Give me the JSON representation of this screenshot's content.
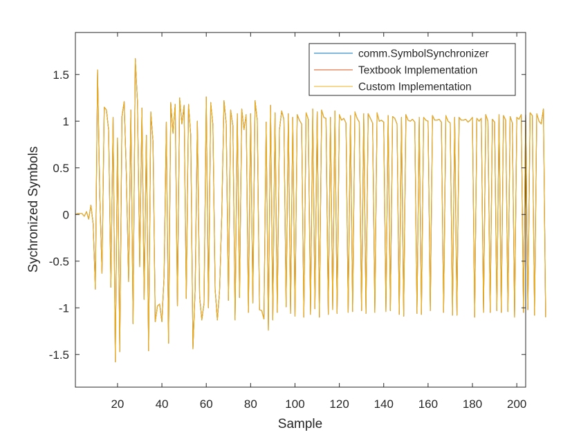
{
  "chart_data": {
    "type": "line",
    "title": "",
    "xlabel": "Sample",
    "ylabel": "Sychronized Symbols",
    "xlim": [
      1,
      204
    ],
    "ylim": [
      -1.85,
      1.95
    ],
    "xticks": [
      20,
      40,
      60,
      80,
      100,
      120,
      140,
      160,
      180,
      200
    ],
    "xtick_labels": [
      "20",
      "40",
      "60",
      "80",
      "100",
      "120",
      "140",
      "160",
      "180",
      "200"
    ],
    "yticks": [
      -1.5,
      -1,
      -0.5,
      0,
      0.5,
      1,
      1.5
    ],
    "ytick_labels": [
      "-1.5",
      "-1",
      "-0.5",
      "0",
      "0.5",
      "1",
      "1.5"
    ],
    "grid": false,
    "legend_position": "top-right",
    "x_start": 1,
    "series": [
      {
        "name": "comm.SymbolSynchronizer",
        "color": "#0072BD",
        "values": [
          0,
          0.01,
          0.01,
          0.01,
          -0.02,
          0.03,
          -0.05,
          0.1,
          -0.1,
          -0.8,
          1.55,
          0.2,
          -0.63,
          1.15,
          1.12,
          0.9,
          -0.78,
          1.04,
          -1.58,
          0.82,
          -1.47,
          1.05,
          1.21,
          0.4,
          -0.72,
          1.12,
          -1.17,
          1.67,
          1.2,
          -0.56,
          1.14,
          -0.91,
          0.85,
          -1.46,
          1.1,
          0.78,
          -1.15,
          -0.98,
          -0.96,
          -1.15,
          -0.65,
          0.99,
          -1.38,
          1.2,
          0.87,
          1.18,
          -0.98,
          1.25,
          0.97,
          1.17,
          -0.9,
          1.18,
          0.85,
          -1.44,
          -0.8,
          1.0,
          -0.88,
          -1.13,
          -0.95,
          1.26,
          -1.0,
          1.2,
          0.96,
          -0.8,
          -1.13,
          -0.82,
          0.0,
          1.22,
          0.97,
          -0.92,
          1.12,
          0.95,
          -1.13,
          1.08,
          -0.89,
          1.13,
          0.91,
          1.07,
          -1.05,
          1.08,
          -0.95,
          1.22,
          1.01,
          -1.02,
          -1.03,
          -1.12,
          0.99,
          -1.24,
          1.17,
          -1.13,
          1.09,
          -1.05,
          0.91,
          1.11,
          1.02,
          -0.99,
          1.08,
          -1.06,
          1.04,
          -1.09,
          1.07,
          1.01,
          0.97,
          -1.1,
          1.09,
          1.02,
          -1.07,
          1.13,
          -1.01,
          1.1,
          -1.1,
          1.12,
          1.04,
          1.03,
          -1.07,
          1.04,
          -1.02,
          1.11,
          -1.06,
          1.07,
          1.01,
          1.03,
          0.98,
          -1.05,
          1.06,
          -1.04,
          1.1,
          1.03,
          0.99,
          -1.03,
          1.08,
          -1.06,
          1.08,
          1.03,
          0.98,
          -1.05,
          1.09,
          1.0,
          1.01,
          0.99,
          -1.04,
          1.06,
          -1.03,
          1.05,
          1.03,
          0.97,
          -1.07,
          1.04,
          -1.09,
          1.07,
          1.01,
          1.0,
          1.02,
          0.99,
          -1.06,
          1.04,
          -1.07,
          1.04,
          1.01,
          1.0,
          -1.03,
          1.06,
          1.01,
          1.01,
          1.02,
          0.99,
          -1.05,
          1.06,
          1.0,
          0.98,
          -1.08,
          1.04,
          -1.08,
          1.04,
          1.01,
          1.01,
          1.02,
          0.99,
          1.01,
          1.04,
          -1.1,
          1.03,
          1.0,
          1.03,
          -1.05,
          1.07,
          1.0,
          -1.05,
          1.02,
          0.99,
          -1.03,
          1.07,
          -1.05,
          1.06,
          1.01,
          -1.04,
          1.05,
          0.98,
          -1.1,
          1.04,
          1.02,
          1.07,
          -1.05,
          1.07,
          -1.02,
          1.09,
          1.06,
          -1.08,
          1.08,
          1.0,
          0.97,
          1.13,
          -1.1
        ]
      },
      {
        "name": "Textbook Implementation",
        "color": "#D95319",
        "values": [
          0,
          0.01,
          0.01,
          0.01,
          -0.02,
          0.03,
          -0.05,
          0.1,
          -0.1,
          -0.8,
          1.55,
          0.2,
          -0.63,
          1.15,
          1.12,
          0.9,
          -0.78,
          1.04,
          -1.58,
          0.82,
          -1.47,
          1.05,
          1.21,
          0.4,
          -0.72,
          1.12,
          -1.17,
          1.67,
          1.2,
          -0.56,
          1.14,
          -0.91,
          0.85,
          -1.46,
          1.1,
          0.78,
          -1.15,
          -0.98,
          -0.96,
          -1.15,
          -0.65,
          0.99,
          -1.38,
          1.2,
          0.87,
          1.18,
          -0.98,
          1.25,
          0.97,
          1.17,
          -0.9,
          1.18,
          0.85,
          -1.44,
          -0.8,
          1.0,
          -0.88,
          -1.13,
          -0.95,
          1.26,
          -1.0,
          1.2,
          0.96,
          -0.8,
          -1.13,
          -0.82,
          0.0,
          1.22,
          0.97,
          -0.92,
          1.12,
          0.95,
          -1.13,
          1.08,
          -0.89,
          1.13,
          0.91,
          1.07,
          -1.05,
          1.08,
          -0.95,
          1.22,
          1.01,
          -1.02,
          -1.03,
          -1.12,
          0.99,
          -1.24,
          1.17,
          -1.13,
          1.09,
          -1.05,
          0.91,
          1.11,
          1.02,
          -0.99,
          1.08,
          -1.06,
          1.04,
          -1.09,
          1.07,
          1.01,
          0.97,
          -1.1,
          1.09,
          1.02,
          -1.07,
          1.13,
          -1.01,
          1.1,
          -1.1,
          1.12,
          1.04,
          1.03,
          -1.07,
          1.04,
          -1.02,
          1.11,
          -1.06,
          1.07,
          1.01,
          1.03,
          0.98,
          -1.05,
          1.06,
          -1.04,
          1.1,
          1.03,
          0.99,
          -1.03,
          1.08,
          -1.06,
          1.08,
          1.03,
          0.98,
          -1.05,
          1.09,
          1.0,
          1.01,
          0.99,
          -1.04,
          1.06,
          -1.03,
          1.05,
          1.03,
          0.97,
          -1.07,
          1.04,
          -1.09,
          1.07,
          1.01,
          1.0,
          1.02,
          0.99,
          -1.06,
          1.04,
          -1.07,
          1.04,
          1.01,
          1.0,
          -1.03,
          1.06,
          1.01,
          1.01,
          1.02,
          0.99,
          -1.05,
          1.06,
          1.0,
          0.98,
          -1.08,
          1.04,
          -1.08,
          1.04,
          1.01,
          1.01,
          1.02,
          0.99,
          1.01,
          1.04,
          -1.1,
          1.03,
          1.0,
          1.03,
          -1.05,
          1.07,
          1.0,
          -1.05,
          1.02,
          0.99,
          -1.03,
          1.07,
          -1.05,
          1.06,
          1.01,
          -1.04,
          1.05,
          0.98,
          -1.1,
          1.04,
          1.02,
          1.07,
          -1.05,
          1.07,
          -1.02,
          1.09,
          1.06,
          -1.08,
          1.08,
          1.0,
          0.97,
          1.13,
          -1.1
        ]
      },
      {
        "name": "Custom Implementation",
        "color": "#EDB120",
        "values": [
          0,
          0.01,
          0.01,
          0.01,
          -0.02,
          0.03,
          -0.05,
          0.1,
          -0.1,
          -0.8,
          1.55,
          0.2,
          -0.63,
          1.15,
          1.12,
          0.9,
          -0.78,
          1.04,
          -1.58,
          0.82,
          -1.47,
          1.05,
          1.21,
          0.4,
          -0.72,
          1.12,
          -1.17,
          1.67,
          1.2,
          -0.56,
          1.14,
          -0.91,
          0.85,
          -1.46,
          1.1,
          0.78,
          -1.15,
          -0.98,
          -0.96,
          -1.15,
          -0.65,
          0.99,
          -1.38,
          1.2,
          0.87,
          1.18,
          -0.98,
          1.25,
          0.97,
          1.17,
          -0.9,
          1.18,
          0.85,
          -1.44,
          -0.8,
          1.0,
          -0.88,
          -1.13,
          -0.95,
          1.26,
          -1.0,
          1.2,
          0.96,
          -0.8,
          -1.13,
          -0.82,
          0.0,
          1.22,
          0.97,
          -0.92,
          1.12,
          0.95,
          -1.13,
          1.08,
          -0.89,
          1.13,
          0.91,
          1.07,
          -1.05,
          1.08,
          -0.95,
          1.22,
          1.01,
          -1.02,
          -1.03,
          -1.12,
          0.99,
          -1.24,
          1.17,
          -1.13,
          1.09,
          -1.05,
          0.91,
          1.11,
          1.02,
          -0.99,
          1.08,
          -1.06,
          1.04,
          -1.09,
          1.07,
          1.01,
          0.97,
          -1.1,
          1.09,
          1.02,
          -1.07,
          1.13,
          -1.01,
          1.1,
          -1.1,
          1.12,
          1.04,
          1.03,
          -1.07,
          1.04,
          -1.02,
          1.11,
          -1.06,
          1.07,
          1.01,
          1.03,
          0.98,
          -1.05,
          1.06,
          -1.04,
          1.1,
          1.03,
          0.99,
          -1.03,
          1.08,
          -1.06,
          1.08,
          1.03,
          0.98,
          -1.05,
          1.09,
          1.0,
          1.01,
          0.99,
          -1.04,
          1.06,
          -1.03,
          1.05,
          1.03,
          0.97,
          -1.07,
          1.04,
          -1.09,
          1.07,
          1.01,
          1.0,
          1.02,
          0.99,
          -1.06,
          1.04,
          -1.07,
          1.04,
          1.01,
          1.0,
          -1.03,
          1.06,
          1.01,
          1.01,
          1.02,
          0.99,
          -1.05,
          1.06,
          1.0,
          0.98,
          -1.08,
          1.04,
          -1.08,
          1.04,
          1.01,
          1.01,
          1.02,
          0.99,
          1.01,
          1.04,
          -1.1,
          1.03,
          1.0,
          1.03,
          -1.05,
          1.07,
          1.0,
          -1.05,
          1.02,
          0.99,
          -1.03,
          1.07,
          -1.05,
          1.06,
          1.01,
          -1.04,
          1.05,
          0.98,
          -1.1,
          1.04,
          1.02,
          1.07,
          -1.05,
          1.07,
          -1.02,
          1.09,
          1.06,
          -1.08,
          1.08,
          1.0,
          0.97,
          1.13,
          -1.1
        ]
      }
    ]
  }
}
